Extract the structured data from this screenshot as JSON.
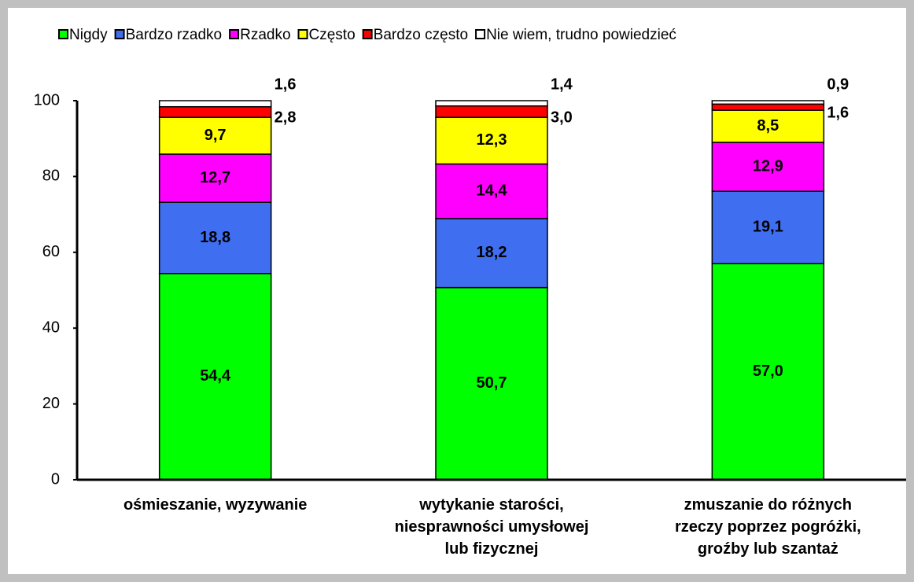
{
  "chart_data": {
    "type": "stacked_bar",
    "categories": [
      "ośmieszanie, wyzywanie",
      "wytykanie starości,\nniesprawności umysłowej\nlub fizycznej",
      "zmuszanie do różnych\nrzeczy poprzez pogróżki,\ngroźby lub szantaż"
    ],
    "series": [
      {
        "name": "Nigdy",
        "color": "#00ff00",
        "values": [
          54.4,
          50.7,
          57.0
        ],
        "value_labels": [
          "54,4",
          "50,7",
          "57,0"
        ]
      },
      {
        "name": "Bardzo rzadko",
        "color": "#3f6ff0",
        "values": [
          18.8,
          18.2,
          19.1
        ],
        "value_labels": [
          "18,8",
          "18,2",
          "19,1"
        ]
      },
      {
        "name": "Rzadko",
        "color": "#ff00ff",
        "values": [
          12.7,
          14.4,
          12.9
        ],
        "value_labels": [
          "12,7",
          "14,4",
          "12,9"
        ]
      },
      {
        "name": "Często",
        "color": "#ffff00",
        "values": [
          9.7,
          12.3,
          8.5
        ],
        "value_labels": [
          "9,7",
          "12,3",
          "8,5"
        ]
      },
      {
        "name": "Bardzo często",
        "color": "#ff0000",
        "values": [
          2.8,
          3.0,
          1.6
        ],
        "value_labels": [
          "2,8",
          "3,0",
          "1,6"
        ]
      },
      {
        "name": "Nie wiem, trudno powiedzieć",
        "color": "#ffffff",
        "values": [
          1.6,
          1.4,
          0.9
        ],
        "value_labels": [
          "1,6",
          "1,4",
          "0,9"
        ]
      }
    ],
    "ylim": [
      0,
      100
    ],
    "yticks": [
      0,
      20,
      40,
      60,
      80,
      100
    ],
    "legend": "top"
  }
}
